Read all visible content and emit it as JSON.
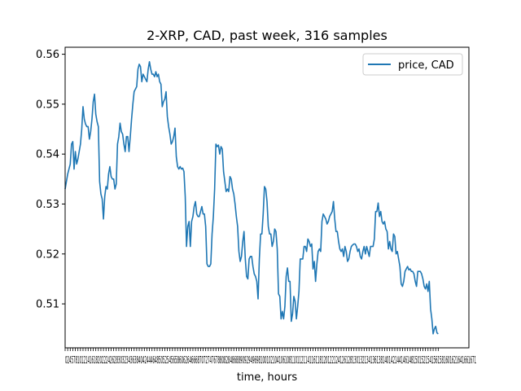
{
  "chart_data": {
    "type": "line",
    "title": "2-XRP, CAD, past week, 316 samples",
    "xlabel": "time, hours",
    "ylabel": "",
    "xlim": [
      0,
      316
    ],
    "ylim": [
      0.5012,
      0.5614
    ],
    "y_ticks": [
      0.51,
      0.52,
      0.53,
      0.54,
      0.55,
      0.56
    ],
    "y_tick_labels": [
      "0.51",
      "0.52",
      "0.53",
      "0.54",
      "0.55",
      "0.56"
    ],
    "x_tick_label_text": "0245781012141618202224262830323436384042444648505254565860626466687072747678808284868890929496981001021041061081101121141161181201221241261281301321341361381401421441461481501521541561581601621641661671",
    "legend": {
      "position": "top-right",
      "entries": [
        "price, CAD"
      ]
    },
    "grid": false,
    "series": [
      {
        "name": "price, CAD",
        "color": "#1f77b4",
        "points": [
          [
            0,
            0.533
          ],
          [
            2,
            0.536
          ],
          [
            4,
            0.538
          ],
          [
            5,
            0.542
          ],
          [
            6,
            0.5425
          ],
          [
            7,
            0.537
          ],
          [
            8,
            0.5405
          ],
          [
            9,
            0.538
          ],
          [
            10,
            0.539
          ],
          [
            11,
            0.5405
          ],
          [
            12,
            0.542
          ],
          [
            13,
            0.545
          ],
          [
            14,
            0.5495
          ],
          [
            15,
            0.547
          ],
          [
            16,
            0.546
          ],
          [
            17,
            0.5455
          ],
          [
            18,
            0.5455
          ],
          [
            19,
            0.543
          ],
          [
            20,
            0.5445
          ],
          [
            21,
            0.547
          ],
          [
            22,
            0.5505
          ],
          [
            23,
            0.552
          ],
          [
            24,
            0.548
          ],
          [
            25,
            0.5465
          ],
          [
            26,
            0.5455
          ],
          [
            27,
            0.5345
          ],
          [
            28,
            0.532
          ],
          [
            29,
            0.531
          ],
          [
            30,
            0.527
          ],
          [
            31,
            0.5315
          ],
          [
            32,
            0.5335
          ],
          [
            33,
            0.533
          ],
          [
            34,
            0.536
          ],
          [
            35,
            0.5375
          ],
          [
            36,
            0.5355
          ],
          [
            37,
            0.535
          ],
          [
            38,
            0.535
          ],
          [
            39,
            0.533
          ],
          [
            40,
            0.534
          ],
          [
            41,
            0.542
          ],
          [
            42,
            0.5435
          ],
          [
            43,
            0.5462
          ],
          [
            44,
            0.5445
          ],
          [
            45,
            0.544
          ],
          [
            46,
            0.542
          ],
          [
            47,
            0.5405
          ],
          [
            48,
            0.5435
          ],
          [
            49,
            0.5435
          ],
          [
            50,
            0.5405
          ],
          [
            51,
            0.5435
          ],
          [
            52,
            0.547
          ],
          [
            53,
            0.55
          ],
          [
            54,
            0.5525
          ],
          [
            55,
            0.553
          ],
          [
            56,
            0.5535
          ],
          [
            57,
            0.557
          ],
          [
            58,
            0.558
          ],
          [
            59,
            0.5575
          ],
          [
            60,
            0.5545
          ],
          [
            61,
            0.556
          ],
          [
            62,
            0.5555
          ],
          [
            63,
            0.555
          ],
          [
            64,
            0.5545
          ],
          [
            65,
            0.557
          ],
          [
            66,
            0.5585
          ],
          [
            67,
            0.557
          ],
          [
            68,
            0.556
          ],
          [
            69,
            0.556
          ],
          [
            70,
            0.5555
          ],
          [
            71,
            0.5565
          ],
          [
            72,
            0.5555
          ],
          [
            73,
            0.556
          ],
          [
            74,
            0.5545
          ],
          [
            75,
            0.554
          ],
          [
            76,
            0.5495
          ],
          [
            77,
            0.5505
          ],
          [
            78,
            0.551
          ],
          [
            79,
            0.5525
          ],
          [
            80,
            0.5475
          ],
          [
            81,
            0.5455
          ],
          [
            82,
            0.544
          ],
          [
            83,
            0.542
          ],
          [
            84,
            0.5425
          ],
          [
            85,
            0.5435
          ],
          [
            86,
            0.5452
          ],
          [
            87,
            0.5395
          ],
          [
            88,
            0.5375
          ],
          [
            89,
            0.537
          ],
          [
            90,
            0.5375
          ],
          [
            91,
            0.537
          ],
          [
            92,
            0.5372
          ],
          [
            93,
            0.5365
          ],
          [
            94,
            0.5315
          ],
          [
            95,
            0.5215
          ],
          [
            96,
            0.5255
          ],
          [
            97,
            0.5265
          ],
          [
            98,
            0.5215
          ],
          [
            99,
            0.5265
          ],
          [
            100,
            0.5275
          ],
          [
            101,
            0.5295
          ],
          [
            102,
            0.5305
          ],
          [
            103,
            0.528
          ],
          [
            104,
            0.5275
          ],
          [
            105,
            0.5275
          ],
          [
            106,
            0.5285
          ],
          [
            107,
            0.5295
          ],
          [
            108,
            0.528
          ],
          [
            109,
            0.528
          ],
          [
            110,
            0.5255
          ],
          [
            111,
            0.518
          ],
          [
            112,
            0.5175
          ],
          [
            113,
            0.5175
          ],
          [
            114,
            0.518
          ],
          [
            115,
            0.524
          ],
          [
            116,
            0.5275
          ],
          [
            117,
            0.533
          ],
          [
            118,
            0.542
          ],
          [
            119,
            0.5415
          ],
          [
            120,
            0.5418
          ],
          [
            121,
            0.54
          ],
          [
            122,
            0.5415
          ],
          [
            123,
            0.541
          ],
          [
            124,
            0.5365
          ],
          [
            125,
            0.5345
          ],
          [
            126,
            0.5325
          ],
          [
            127,
            0.533
          ],
          [
            128,
            0.5325
          ],
          [
            129,
            0.5355
          ],
          [
            130,
            0.535
          ],
          [
            131,
            0.533
          ],
          [
            132,
            0.532
          ],
          [
            133,
            0.53
          ],
          [
            134,
            0.5275
          ],
          [
            135,
            0.5255
          ],
          [
            136,
            0.5205
          ],
          [
            137,
            0.5185
          ],
          [
            138,
            0.5195
          ],
          [
            139,
            0.5225
          ],
          [
            140,
            0.5245
          ],
          [
            141,
            0.519
          ],
          [
            142,
            0.5155
          ],
          [
            143,
            0.515
          ],
          [
            144,
            0.519
          ],
          [
            145,
            0.5195
          ],
          [
            146,
            0.5195
          ],
          [
            147,
            0.5175
          ],
          [
            148,
            0.516
          ],
          [
            149,
            0.5155
          ],
          [
            150,
            0.5145
          ],
          [
            151,
            0.511
          ],
          [
            152,
            0.519
          ],
          [
            153,
            0.524
          ],
          [
            154,
            0.524
          ],
          [
            155,
            0.528
          ],
          [
            156,
            0.5335
          ],
          [
            157,
            0.533
          ],
          [
            158,
            0.5305
          ],
          [
            159,
            0.5255
          ],
          [
            160,
            0.524
          ],
          [
            161,
            0.524
          ],
          [
            162,
            0.5215
          ],
          [
            163,
            0.5225
          ],
          [
            164,
            0.525
          ],
          [
            165,
            0.5245
          ],
          [
            166,
            0.521
          ],
          [
            167,
            0.512
          ],
          [
            168,
            0.5115
          ],
          [
            169,
            0.507
          ],
          [
            170,
            0.5085
          ],
          [
            171,
            0.507
          ],
          [
            172,
            0.5095
          ],
          [
            173,
            0.5155
          ],
          [
            174,
            0.5172
          ],
          [
            175,
            0.5145
          ],
          [
            176,
            0.5145
          ],
          [
            177,
            0.5065
          ],
          [
            178,
            0.508
          ],
          [
            179,
            0.5115
          ],
          [
            180,
            0.5105
          ],
          [
            181,
            0.507
          ],
          [
            182,
            0.5095
          ],
          [
            183,
            0.5125
          ],
          [
            184,
            0.519
          ],
          [
            185,
            0.519
          ],
          [
            186,
            0.519
          ],
          [
            187,
            0.5215
          ],
          [
            188,
            0.5215
          ],
          [
            189,
            0.5205
          ],
          [
            190,
            0.523
          ],
          [
            191,
            0.5225
          ],
          [
            192,
            0.5215
          ],
          [
            193,
            0.522
          ],
          [
            194,
            0.517
          ],
          [
            195,
            0.5185
          ],
          [
            196,
            0.5145
          ],
          [
            197,
            0.518
          ],
          [
            198,
            0.5205
          ],
          [
            199,
            0.521
          ],
          [
            200,
            0.5205
          ],
          [
            201,
            0.5265
          ],
          [
            202,
            0.528
          ],
          [
            203,
            0.5275
          ],
          [
            204,
            0.527
          ],
          [
            205,
            0.526
          ],
          [
            206,
            0.5265
          ],
          [
            207,
            0.5275
          ],
          [
            208,
            0.528
          ],
          [
            209,
            0.5285
          ],
          [
            210,
            0.5305
          ],
          [
            211,
            0.527
          ],
          [
            212,
            0.5245
          ],
          [
            213,
            0.5245
          ],
          [
            214,
            0.5225
          ],
          [
            215,
            0.521
          ],
          [
            216,
            0.5205
          ],
          [
            217,
            0.521
          ],
          [
            218,
            0.5195
          ],
          [
            219,
            0.5215
          ],
          [
            220,
            0.5205
          ],
          [
            221,
            0.5185
          ],
          [
            222,
            0.519
          ],
          [
            223,
            0.5205
          ],
          [
            224,
            0.5215
          ],
          [
            225,
            0.5218
          ],
          [
            226,
            0.522
          ],
          [
            227,
            0.522
          ],
          [
            228,
            0.5215
          ],
          [
            229,
            0.5205
          ],
          [
            230,
            0.521
          ],
          [
            231,
            0.5195
          ],
          [
            232,
            0.519
          ],
          [
            233,
            0.5205
          ],
          [
            234,
            0.5215
          ],
          [
            235,
            0.52
          ],
          [
            236,
            0.5215
          ],
          [
            237,
            0.5205
          ],
          [
            238,
            0.5195
          ],
          [
            239,
            0.5215
          ],
          [
            240,
            0.5215
          ],
          [
            241,
            0.5215
          ],
          [
            242,
            0.523
          ],
          [
            243,
            0.5285
          ],
          [
            244,
            0.5285
          ],
          [
            245,
            0.5302
          ],
          [
            246,
            0.5275
          ],
          [
            247,
            0.5285
          ],
          [
            248,
            0.5265
          ],
          [
            249,
            0.526
          ],
          [
            250,
            0.5265
          ],
          [
            251,
            0.525
          ],
          [
            252,
            0.5245
          ],
          [
            253,
            0.521
          ],
          [
            254,
            0.5225
          ],
          [
            255,
            0.521
          ],
          [
            256,
            0.5205
          ],
          [
            257,
            0.524
          ],
          [
            258,
            0.5235
          ],
          [
            259,
            0.52
          ],
          [
            260,
            0.5205
          ],
          [
            261,
            0.519
          ],
          [
            262,
            0.5175
          ],
          [
            263,
            0.514
          ],
          [
            264,
            0.5135
          ],
          [
            265,
            0.5145
          ],
          [
            266,
            0.5165
          ],
          [
            267,
            0.517
          ],
          [
            268,
            0.5175
          ],
          [
            269,
            0.5168
          ],
          [
            270,
            0.517
          ],
          [
            271,
            0.5165
          ],
          [
            272,
            0.5165
          ],
          [
            273,
            0.516
          ],
          [
            274,
            0.5145
          ],
          [
            275,
            0.5135
          ],
          [
            276,
            0.5165
          ],
          [
            277,
            0.5165
          ],
          [
            278,
            0.5165
          ],
          [
            279,
            0.516
          ],
          [
            280,
            0.515
          ],
          [
            281,
            0.5135
          ],
          [
            282,
            0.513
          ],
          [
            283,
            0.514
          ],
          [
            284,
            0.5125
          ],
          [
            285,
            0.5145
          ],
          [
            286,
            0.509
          ],
          [
            287,
            0.507
          ],
          [
            288,
            0.504
          ],
          [
            289,
            0.505
          ],
          [
            290,
            0.5055
          ],
          [
            291,
            0.5042
          ],
          [
            292,
            0.504
          ]
        ]
      }
    ]
  }
}
